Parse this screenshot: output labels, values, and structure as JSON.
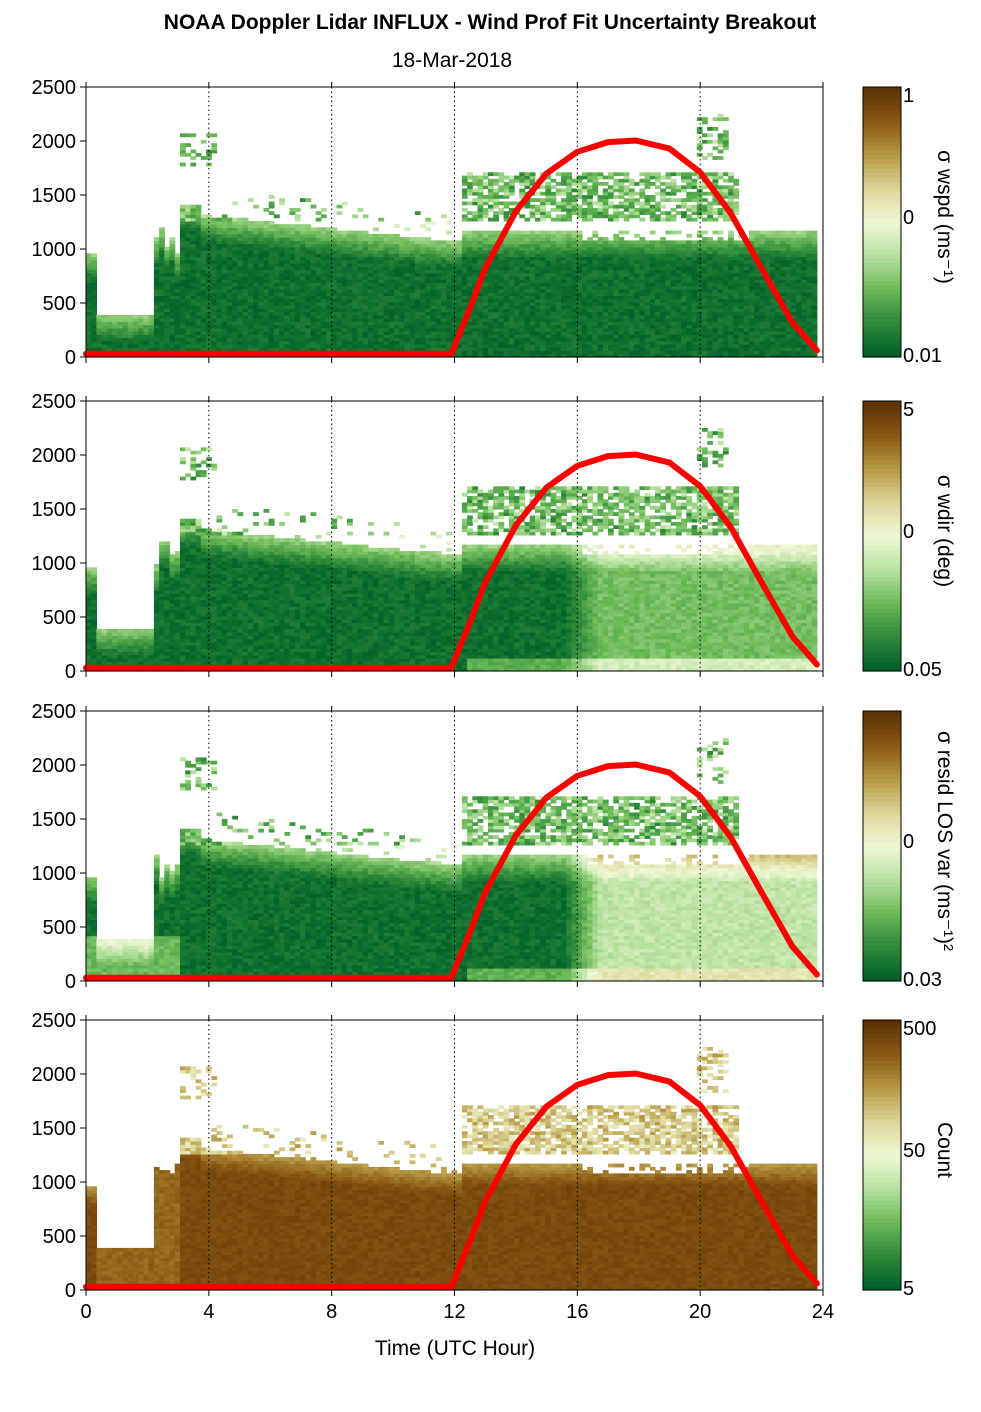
{
  "title": "NOAA Doppler Lidar INFLUX - Wind Prof Fit Uncertainty Breakout",
  "subtitle": "18-Mar-2018",
  "xlabel": "Time (UTC Hour)",
  "colors": {
    "sun_curve": "#ff0000",
    "colormap": [
      "#00602a",
      "#2f8b3a",
      "#6cba58",
      "#b8e1a0",
      "#eef7d6",
      "#ddd79a",
      "#b89a45",
      "#8a5a14",
      "#5f3305"
    ]
  },
  "chart_data": [
    {
      "type": "heatmap",
      "panel": 1,
      "x_range": [
        0,
        24
      ],
      "x_ticks": [
        "0",
        "4",
        "8",
        "12",
        "16",
        "20",
        "24"
      ],
      "y_range": [
        0,
        2500
      ],
      "y_ticks": [
        "0",
        "500",
        "1000",
        "1500",
        "2000",
        "2500"
      ],
      "colorbar_label": "σ wspd (ms⁻¹)",
      "colorbar_ticks": [
        "1",
        "0",
        "0.01"
      ],
      "colorbar_scale": "log",
      "colorbar_range": [
        0.01,
        1
      ],
      "vertical_gridlines_at": [
        4,
        8,
        12,
        16,
        20,
        24
      ],
      "grid": "vertical dotted"
    },
    {
      "type": "heatmap",
      "panel": 2,
      "x_range": [
        0,
        24
      ],
      "x_ticks": [
        "0",
        "4",
        "8",
        "12",
        "16",
        "20",
        "24"
      ],
      "y_range": [
        0,
        2500
      ],
      "y_ticks": [
        "0",
        "500",
        "1000",
        "1500",
        "2000",
        "2500"
      ],
      "colorbar_label": "σ wdir (deg)",
      "colorbar_ticks": [
        "5",
        "0",
        "0.05"
      ],
      "colorbar_scale": "log",
      "colorbar_range": [
        0.05,
        5
      ],
      "vertical_gridlines_at": [
        4,
        8,
        12,
        16,
        20,
        24
      ],
      "grid": "vertical dotted"
    },
    {
      "type": "heatmap",
      "panel": 3,
      "x_range": [
        0,
        24
      ],
      "x_ticks": [
        "0",
        "4",
        "8",
        "12",
        "16",
        "20",
        "24"
      ],
      "y_range": [
        0,
        2500
      ],
      "y_ticks": [
        "0",
        "500",
        "1000",
        "1500",
        "2000",
        "2500"
      ],
      "colorbar_label": "σ resid LOS var (ms⁻¹)²",
      "colorbar_ticks": [
        "0",
        "0.03"
      ],
      "colorbar_scale": "log",
      "vertical_gridlines_at": [
        4,
        8,
        12,
        16,
        20,
        24
      ],
      "grid": "vertical dotted"
    },
    {
      "type": "heatmap",
      "panel": 4,
      "x_range": [
        0,
        24
      ],
      "x_ticks": [
        "0",
        "4",
        "8",
        "12",
        "16",
        "20",
        "24"
      ],
      "y_range": [
        0,
        2500
      ],
      "y_ticks": [
        "0",
        "500",
        "1000",
        "1500",
        "2000",
        "2500"
      ],
      "colorbar_label": "Count",
      "colorbar_ticks": [
        "500",
        "50",
        "5"
      ],
      "colorbar_scale": "log",
      "vertical_gridlines_at": [
        4,
        8,
        12,
        16,
        20,
        24
      ],
      "grid": "vertical dotted"
    }
  ],
  "sun_curve": {
    "x": [
      0,
      11.9,
      12.5,
      13,
      14,
      15,
      16,
      17,
      17.9,
      19,
      20,
      21,
      22,
      23,
      23.8
    ],
    "y": [
      30,
      30,
      450,
      820,
      1350,
      1700,
      1900,
      1990,
      2005,
      1930,
      1710,
      1330,
      820,
      320,
      60
    ]
  }
}
